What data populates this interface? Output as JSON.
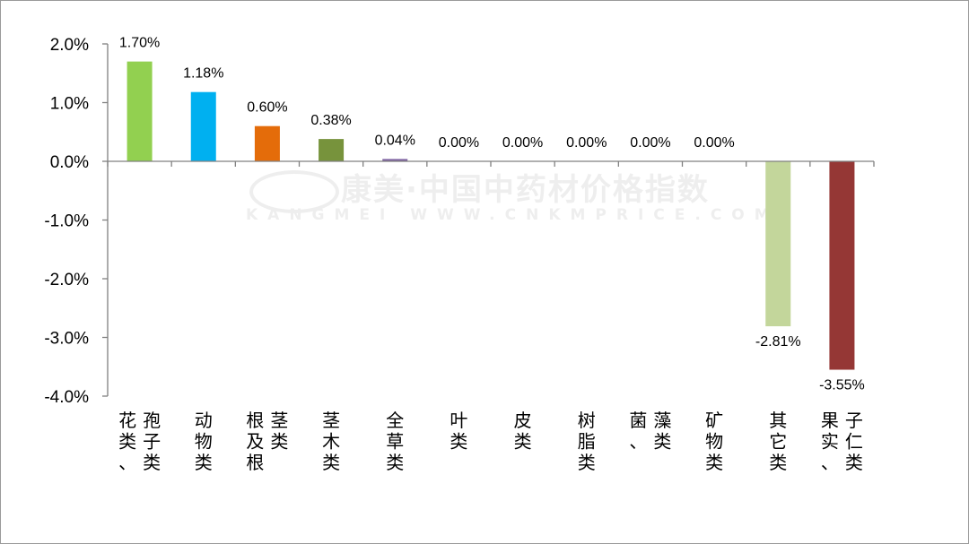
{
  "chart_data": {
    "type": "bar",
    "categories": [
      "花类、孢子类",
      "动物类",
      "根及根茎类",
      "茎木类",
      "全草类",
      "叶类",
      "皮类",
      "树脂类",
      "菌、藻类",
      "矿物类",
      "其它类",
      "果实、子仁类"
    ],
    "values": [
      1.7,
      1.18,
      0.6,
      0.38,
      0.04,
      0.0,
      0.0,
      0.0,
      0.0,
      0.0,
      -2.81,
      -3.55
    ],
    "value_labels": [
      "1.70%",
      "1.18%",
      "0.60%",
      "0.38%",
      "0.04%",
      "0.00%",
      "0.00%",
      "0.00%",
      "0.00%",
      "0.00%",
      "-2.81%",
      "-3.55%"
    ],
    "colors": [
      "#92d050",
      "#00b0f0",
      "#e46c0a",
      "#77933c",
      "#8064a2",
      "#4f81bd",
      "#4f81bd",
      "#4f81bd",
      "#4f81bd",
      "#4f81bd",
      "#c3d69b",
      "#953735"
    ],
    "ylim": [
      -4.0,
      2.0
    ],
    "yticks": [
      "2.0%",
      "1.0%",
      "0.0%",
      "-1.0%",
      "-2.0%",
      "-3.0%",
      "-4.0%"
    ],
    "ytick_values": [
      2,
      1,
      0,
      -1,
      -2,
      -3,
      -4
    ],
    "title": "",
    "xlabel": "",
    "ylabel": "",
    "grid": false,
    "legend": "none"
  },
  "watermark": {
    "cn": "康美·中国中药材价格指数",
    "en": "KANGMEI WWW.CNKMPRICE.COM"
  }
}
